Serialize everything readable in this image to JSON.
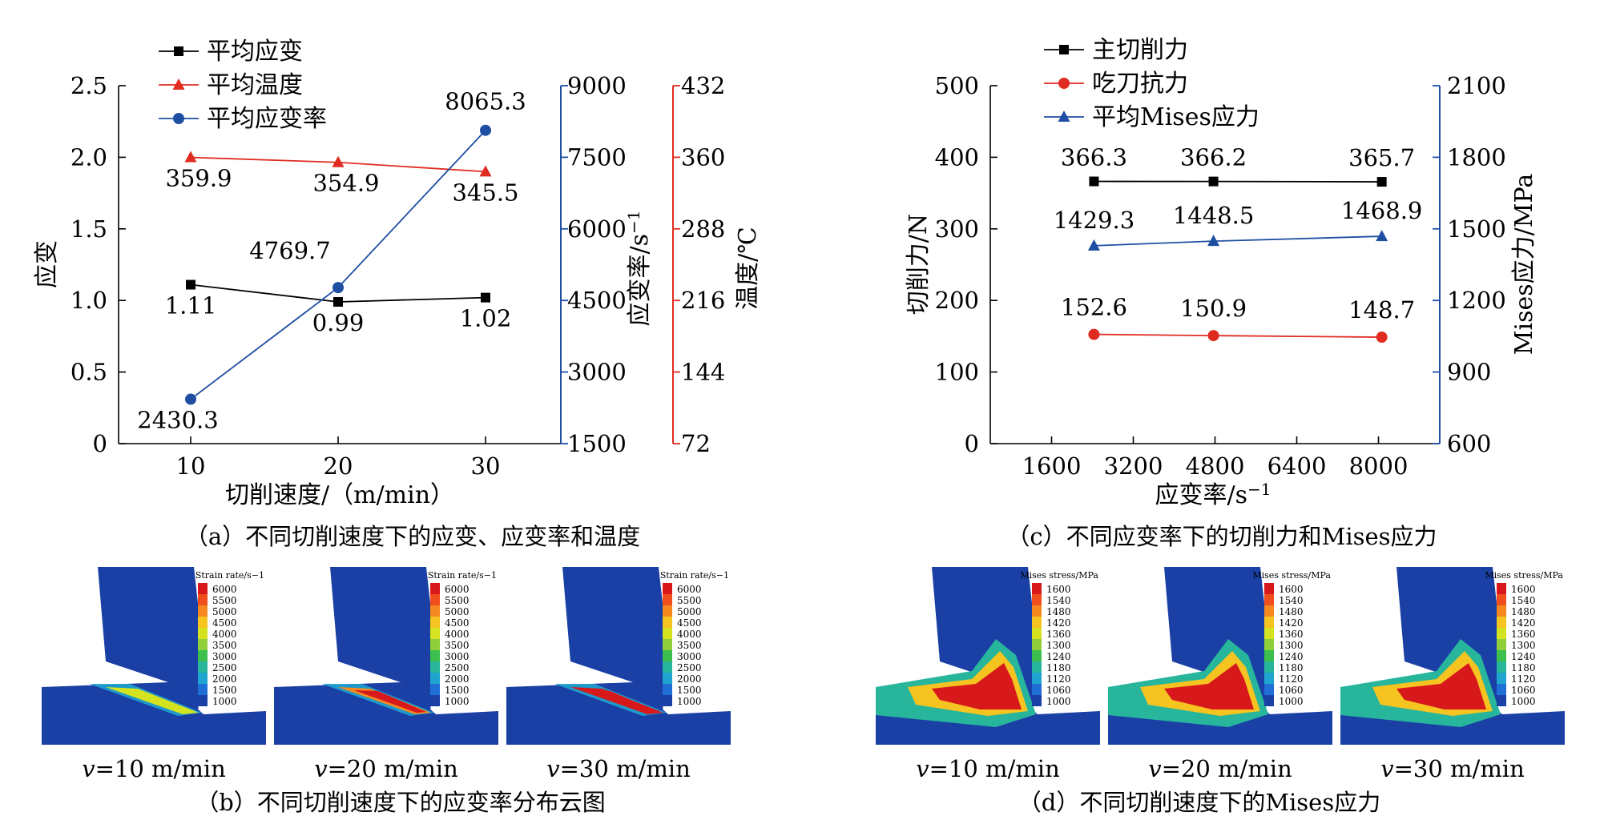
{
  "chart_data": [
    {
      "id": "a",
      "type": "line",
      "caption": "（a）不同切削速度下的应变、应变率和温度",
      "xlabel": "切削速度/（m/min）",
      "x": [
        10,
        20,
        30
      ],
      "x_ticks": [
        "10",
        "20",
        "30"
      ],
      "axes": {
        "strain": {
          "label": "应变",
          "ylim": [
            0,
            2.5
          ],
          "ticks": [
            "0",
            "0.5",
            "1.0",
            "1.5",
            "2.0",
            "2.5"
          ],
          "color": "#000000"
        },
        "rate": {
          "label": "应变率/s",
          "label_sup": "−1",
          "ylim": [
            1500,
            9000
          ],
          "ticks": [
            "1500",
            "3000",
            "4500",
            "6000",
            "7500",
            "9000"
          ],
          "color": "#1f4fa3"
        },
        "temp": {
          "label": "温度/℃",
          "ylim": [
            72,
            432
          ],
          "ticks": [
            "72",
            "144",
            "216",
            "288",
            "360",
            "432"
          ],
          "color": "#e02b20"
        }
      },
      "series": [
        {
          "name": "平均应变",
          "axis": "strain",
          "marker": "square",
          "color": "#000000",
          "values": [
            1.11,
            0.99,
            1.02
          ],
          "labels": [
            "1.11",
            "0.99",
            "1.02"
          ]
        },
        {
          "name": "平均温度",
          "axis": "temp",
          "marker": "triangle",
          "color": "#e02b20",
          "values": [
            359.9,
            354.9,
            345.5
          ],
          "labels": [
            "359.9",
            "354.9",
            "345.5"
          ]
        },
        {
          "name": "平均应变率",
          "axis": "rate",
          "marker": "circle",
          "color": "#1f4fa3",
          "values": [
            2430.3,
            4769.7,
            8065.3
          ],
          "labels": [
            "2430.3",
            "4769.7",
            "8065.3"
          ]
        }
      ]
    },
    {
      "id": "c",
      "type": "line",
      "caption": "（c）不同应变率下的切削力和Mises应力",
      "xlabel": "应变率/s",
      "xlabel_sup": "−1",
      "xlim": [
        400,
        9200
      ],
      "x_ticks": [
        1600,
        3200,
        4800,
        6400,
        8000
      ],
      "x": [
        2430.3,
        4769.7,
        8065.3
      ],
      "axes": {
        "force": {
          "label": "切削力/N",
          "ylim": [
            0,
            500
          ],
          "ticks": [
            "0",
            "100",
            "200",
            "300",
            "400",
            "500"
          ],
          "color": "#000000"
        },
        "mises": {
          "label": "Mises应力/MPa",
          "ylim": [
            600,
            2100
          ],
          "ticks": [
            "600",
            "900",
            "1200",
            "1500",
            "1800",
            "2100"
          ],
          "color": "#1f4fa3"
        }
      },
      "series": [
        {
          "name": "主切削力",
          "axis": "force",
          "marker": "square",
          "color": "#000000",
          "values": [
            366.3,
            366.2,
            365.7
          ],
          "labels": [
            "366.3",
            "366.2",
            "365.7"
          ]
        },
        {
          "name": "吃刀抗力",
          "axis": "force",
          "marker": "circle",
          "color": "#e02b20",
          "values": [
            152.6,
            150.9,
            148.7
          ],
          "labels": [
            "152.6",
            "150.9",
            "148.7"
          ]
        },
        {
          "name": "平均Mises应力",
          "axis": "mises",
          "marker": "triangle",
          "color": "#1f4fa3",
          "values": [
            1429.3,
            1448.5,
            1468.9
          ],
          "labels": [
            "1429.3",
            "1448.5",
            "1468.9"
          ]
        }
      ]
    }
  ],
  "contour_b": {
    "caption": "（b）不同切削速度下的应变率分布云图",
    "legend_title": "Strain rate/s",
    "legend_title_sup": "−1",
    "legend_values": [
      "6000",
      "5500",
      "5000",
      "4500",
      "4000",
      "3500",
      "3000",
      "2500",
      "2000",
      "1500",
      "1000"
    ],
    "panels": [
      {
        "prefix": "v",
        "label": "=10 m/min",
        "intensity": 0.35
      },
      {
        "prefix": "v",
        "label": "=20 m/min",
        "intensity": 0.6
      },
      {
        "prefix": "v",
        "label": "=30 m/min",
        "intensity": 1.0
      }
    ]
  },
  "contour_d": {
    "caption": "（d）不同切削速度下的Mises应力",
    "legend_title": "Mises stress/MPa",
    "legend_values": [
      "1600",
      "1540",
      "1480",
      "1420",
      "1360",
      "1300",
      "1240",
      "1180",
      "1120",
      "1060",
      "1000"
    ],
    "panels": [
      {
        "prefix": "v",
        "label": "=10 m/min",
        "intensity": 0.8
      },
      {
        "prefix": "v",
        "label": "=20 m/min",
        "intensity": 0.9
      },
      {
        "prefix": "v",
        "label": "=30 m/min",
        "intensity": 1.0
      }
    ]
  },
  "colors": {
    "sim_blue": "#1a40a6",
    "scale": [
      "#d7191c",
      "#f04e1c",
      "#f5891f",
      "#f6c420",
      "#d4e21f",
      "#8fd03a",
      "#3cbf4e",
      "#27b59b",
      "#1fa3cf",
      "#1f6fd6",
      "#1a40a6"
    ]
  }
}
